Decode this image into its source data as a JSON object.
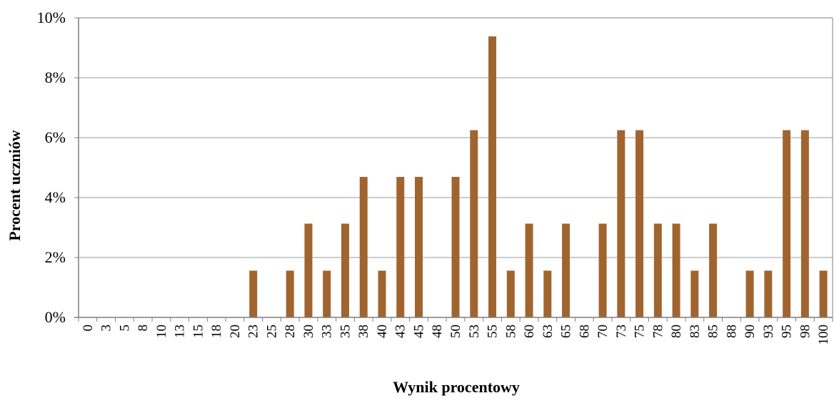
{
  "chart_data": {
    "type": "bar",
    "title": "",
    "xlabel": "Wynik procentowy",
    "ylabel": "Procent uczniów",
    "ylim": [
      0,
      10
    ],
    "y_ticks": [
      "0%",
      "2%",
      "4%",
      "6%",
      "8%",
      "10%"
    ],
    "grid": true,
    "colors": {
      "bar": "#A0652E",
      "grid": "#9A9A9A",
      "axis": "#7F7F7F"
    },
    "categories": [
      "0",
      "3",
      "5",
      "8",
      "10",
      "13",
      "15",
      "18",
      "20",
      "23",
      "25",
      "28",
      "30",
      "33",
      "35",
      "38",
      "40",
      "43",
      "45",
      "48",
      "50",
      "53",
      "55",
      "58",
      "60",
      "63",
      "65",
      "68",
      "70",
      "73",
      "75",
      "78",
      "80",
      "83",
      "85",
      "88",
      "90",
      "93",
      "95",
      "98",
      "100"
    ],
    "values": [
      0,
      0,
      0,
      0,
      0,
      0,
      0,
      0,
      0,
      1.56,
      0,
      1.56,
      3.13,
      1.56,
      3.13,
      4.69,
      1.56,
      4.69,
      4.69,
      0,
      4.69,
      6.25,
      9.38,
      1.56,
      3.13,
      1.56,
      3.13,
      0,
      3.13,
      6.25,
      6.25,
      3.13,
      3.13,
      1.56,
      3.13,
      0,
      1.56,
      1.56,
      6.25,
      6.25,
      1.56
    ]
  }
}
